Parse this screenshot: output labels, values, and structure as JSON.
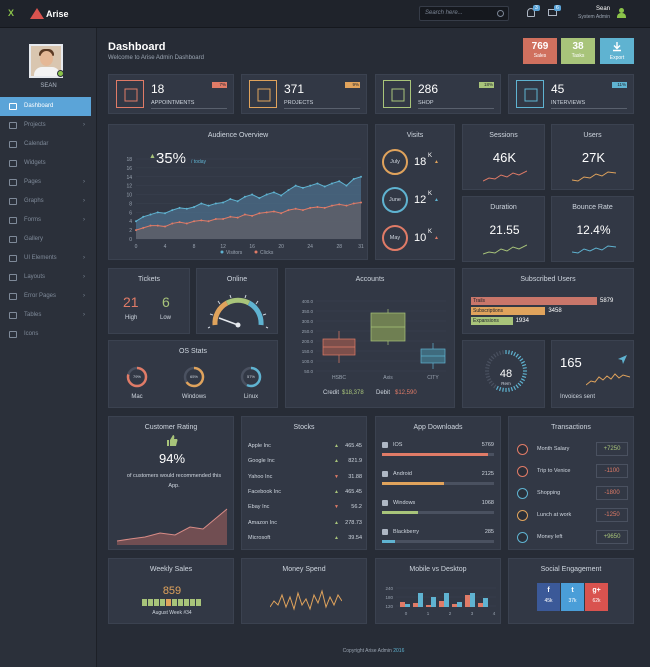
{
  "app": {
    "brand_prefix": "X",
    "brand": "Arise"
  },
  "search": {
    "placeholder": "Search here..."
  },
  "notifications": {
    "alerts": "3",
    "messages": "6"
  },
  "user": {
    "name": "Sean",
    "role": "System Admin"
  },
  "sidebar": {
    "profile_name": "SEAN",
    "items": [
      {
        "label": "Dashboard",
        "active": true,
        "chevron": false
      },
      {
        "label": "Projects",
        "chevron": true
      },
      {
        "label": "Calendar",
        "chevron": false
      },
      {
        "label": "Widgets",
        "chevron": false
      },
      {
        "label": "Pages",
        "chevron": true
      },
      {
        "label": "Graphs",
        "chevron": true
      },
      {
        "label": "Forms",
        "chevron": true
      },
      {
        "label": "Gallery",
        "chevron": false
      },
      {
        "label": "UI Elements",
        "chevron": true
      },
      {
        "label": "Layouts",
        "chevron": true
      },
      {
        "label": "Error Pages",
        "chevron": true
      },
      {
        "label": "Tables",
        "chevron": true
      },
      {
        "label": "Icons",
        "chevron": false
      }
    ]
  },
  "header": {
    "title": "Dashboard",
    "subtitle": "Welcome to Arise Admin Dashboard",
    "sales_value": "769",
    "sales_label": "Sales",
    "tasks_value": "38",
    "tasks_label": "Tasks",
    "export_label": "Export"
  },
  "stats": [
    {
      "value": "18",
      "label": "APPOINTMENTS",
      "flag": "7%",
      "color": "#e07b67"
    },
    {
      "value": "371",
      "label": "PROJECTS",
      "flag": "9%",
      "color": "#e0a35c"
    },
    {
      "value": "286",
      "label": "SHOP",
      "flag": "18%",
      "color": "#a8c47a"
    },
    {
      "value": "45",
      "label": "INTERVIEWS",
      "flag": "11%",
      "color": "#5fb3d1"
    }
  ],
  "audience": {
    "title": "Audience Overview",
    "percent": "35%",
    "percent_note": "/ today",
    "legend_visitors": "Visitors",
    "legend_clicks": "Clicks",
    "y_ticks": [
      "18",
      "16",
      "14",
      "12",
      "10",
      "8",
      "6",
      "4",
      "2",
      "0"
    ],
    "x_ticks": [
      "0",
      "4",
      "8",
      "12",
      "16",
      "20",
      "24",
      "28",
      "31"
    ]
  },
  "chart_data": {
    "type": "area",
    "x": [
      0,
      1,
      2,
      3,
      4,
      5,
      6,
      7,
      8,
      9,
      10,
      11,
      12,
      13,
      14,
      15,
      16,
      17,
      18,
      19,
      20,
      21,
      22,
      23,
      24,
      25,
      26,
      27,
      28,
      29,
      30,
      31
    ],
    "series": [
      {
        "name": "Visitors",
        "values": [
          4,
          5,
          5.5,
          6,
          5.8,
          6.5,
          7,
          6.8,
          7.2,
          8,
          7.5,
          8,
          8.2,
          9,
          8.5,
          9.5,
          10,
          9.2,
          10,
          10.5,
          9.8,
          11,
          12,
          11.5,
          12,
          12.5,
          11.8,
          12.5,
          13,
          12,
          13.5,
          14
        ]
      },
      {
        "name": "Clicks",
        "values": [
          2,
          2.5,
          3,
          3,
          2.8,
          3.5,
          3.8,
          3.5,
          4,
          4.2,
          4,
          4.5,
          4.5,
          5,
          4.8,
          5.5,
          5.2,
          5.8,
          6,
          6.2,
          5.8,
          6.5,
          6.8,
          6.5,
          7,
          7.2,
          7,
          7.5,
          7.8,
          7.5,
          8,
          8.2
        ]
      }
    ],
    "ylim": [
      0,
      18
    ],
    "xlim": [
      0,
      31
    ]
  },
  "visits": {
    "title": "Visits",
    "items": [
      {
        "month": "July",
        "value": "18",
        "unit": "K",
        "color": "#e0a35c",
        "trend": "up"
      },
      {
        "month": "June",
        "value": "12",
        "unit": "K",
        "color": "#5fb3d1",
        "trend": "up"
      },
      {
        "month": "May",
        "value": "10",
        "unit": "K",
        "color": "#e07b67",
        "trend": "up"
      }
    ]
  },
  "sessions": {
    "title": "Sessions",
    "value": "46K"
  },
  "users": {
    "title": "Users",
    "value": "27K"
  },
  "duration": {
    "title": "Duration",
    "value": "21.55"
  },
  "bounce": {
    "title": "Bounce Rate",
    "value": "12.4%"
  },
  "tickets": {
    "title": "Tickets",
    "high_value": "21",
    "high_label": "High",
    "low_value": "6",
    "low_label": "Low"
  },
  "online": {
    "title": "Online"
  },
  "accounts": {
    "title": "Accounts",
    "y_ticks": [
      "400.0",
      "350.0",
      "300.0",
      "250.0",
      "200.0",
      "150.0",
      "100.0",
      "50.0"
    ],
    "categories": [
      "HSBC",
      "Axis",
      "CITY"
    ],
    "credit_label": "Credit",
    "credit_value": "$18,378",
    "debit_label": "Debit",
    "debit_value": "$12,590"
  },
  "subscribed": {
    "title": "Subscribed Users",
    "items": [
      {
        "label": "Trails",
        "value": "5879",
        "fraction": 1.0,
        "color": "#c9766a"
      },
      {
        "label": "Subscriptions",
        "value": "3458",
        "fraction": 0.59,
        "color": "#e0a35c"
      },
      {
        "label": "Expansions",
        "value": "1934",
        "fraction": 0.33,
        "color": "#a8c47a"
      }
    ]
  },
  "os_stats": {
    "title": "OS Stats",
    "items": [
      {
        "label": "Mac",
        "percent": "79%",
        "fraction": 0.79,
        "color": "#e07b67"
      },
      {
        "label": "Windows",
        "percent": "65%",
        "fraction": 0.65,
        "color": "#e0a35c"
      },
      {
        "label": "Linux",
        "percent": "57%",
        "fraction": 0.57,
        "color": "#5fb3d1"
      }
    ]
  },
  "gauge48": {
    "value": "48",
    "label": "Rem"
  },
  "invoices": {
    "value": "165",
    "label": "Invoices sent"
  },
  "rating": {
    "title": "Customer Rating",
    "value": "94%",
    "text": "of customers would recommended this App."
  },
  "stocks": {
    "title": "Stocks",
    "items": [
      {
        "name": "Apple Inc",
        "value": "465.45",
        "trend": "up"
      },
      {
        "name": "Google Inc",
        "value": "821.9",
        "trend": "up"
      },
      {
        "name": "Yahoo Inc",
        "value": "31.88",
        "trend": "down"
      },
      {
        "name": "Facebook Inc",
        "value": "465.45",
        "trend": "up"
      },
      {
        "name": "Ebay Inc",
        "value": "56.2",
        "trend": "down"
      },
      {
        "name": "Amazon Inc",
        "value": "278.73",
        "trend": "up"
      },
      {
        "name": "Microsoft",
        "value": "39.54",
        "trend": "up"
      }
    ]
  },
  "downloads": {
    "title": "App Downloads",
    "items": [
      {
        "name": "IOS",
        "value": "5769",
        "fraction": 0.95,
        "color": "#e07b67"
      },
      {
        "name": "Android",
        "value": "2125",
        "fraction": 0.55,
        "color": "#e0a35c"
      },
      {
        "name": "Windows",
        "value": "1068",
        "fraction": 0.32,
        "color": "#a8c47a"
      },
      {
        "name": "Blackberry",
        "value": "285",
        "fraction": 0.12,
        "color": "#5fb3d1"
      }
    ]
  },
  "transactions": {
    "title": "Transactions",
    "items": [
      {
        "name": "Month Salary",
        "amount": "+7250",
        "positive": true,
        "icon": "#e07b67"
      },
      {
        "name": "Trip to Venice",
        "amount": "-1100",
        "positive": false,
        "icon": "#e07b67"
      },
      {
        "name": "Shopping",
        "amount": "-1800",
        "positive": false,
        "icon": "#5fb3d1"
      },
      {
        "name": "Lunch at work",
        "amount": "-1250",
        "positive": false,
        "icon": "#e0a35c"
      },
      {
        "name": "Money left",
        "amount": "+9650",
        "positive": true,
        "icon": "#5fb3d1"
      }
    ]
  },
  "weekly": {
    "title": "Weekly Sales",
    "value": "859",
    "label": "August Week #34"
  },
  "money": {
    "title": "Money Spend"
  },
  "mobile": {
    "title": "Mobile vs Desktop",
    "y_ticks": [
      "240",
      "180",
      "120"
    ],
    "x_ticks": [
      "0",
      "1",
      "2",
      "3",
      "4"
    ]
  },
  "social": {
    "title": "Social Engagement",
    "items": [
      {
        "count": "45k",
        "color": "#3b5998"
      },
      {
        "count": "37k",
        "color": "#4a9ed8"
      },
      {
        "count": "62k",
        "color": "#d9534f"
      }
    ]
  },
  "footer": {
    "text": "Copyright Arise Admin",
    "year": "2016"
  }
}
